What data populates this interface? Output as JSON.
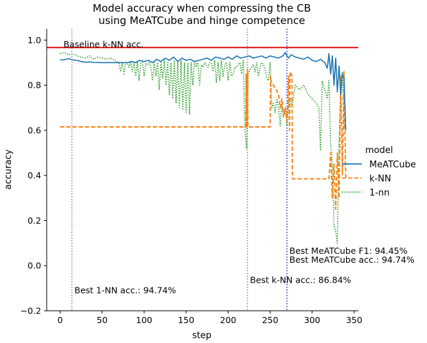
{
  "chart_data": {
    "type": "line",
    "title_lines": [
      "Model accuracy when compressing the CB",
      "using MeATCube and hinge competence"
    ],
    "xlabel": "step",
    "ylabel": "accuracy",
    "xlim": [
      -16,
      355
    ],
    "ylim": [
      -0.2,
      1.05
    ],
    "xticks": [
      0,
      50,
      100,
      150,
      200,
      250,
      300,
      350
    ],
    "yticks": [
      -0.2,
      0.0,
      0.2,
      0.4,
      0.6,
      0.8,
      1.0
    ],
    "grid": false,
    "legend": {
      "title": "model",
      "placement": "right",
      "entries": [
        "MeATCube",
        "k-NN",
        "1-nn"
      ]
    },
    "baseline": {
      "y": 0.967,
      "color": "#e00000",
      "label": "Baseline k-NN acc.",
      "label_at": [
        4,
        0.98
      ]
    },
    "vlines": [
      {
        "x": 14,
        "color": "#7b68d8",
        "label": "Best 1-NN acc.: 94.74%",
        "label_at": [
          17,
          -0.11
        ]
      },
      {
        "x": 223,
        "color": "#7b68d8",
        "label": "Best k-NN acc.: 86.84%",
        "label_at": [
          226,
          -0.065
        ]
      },
      {
        "x": 270,
        "color": "#3a3ad0",
        "label": "Best MeATCube acc.: 94.74%",
        "label_at": [
          273,
          0.025
        ]
      },
      {
        "x": 270,
        "color": "#3a3ad0",
        "label": "Best MeATCube F1: 94.45%",
        "label_at": [
          273,
          0.065
        ]
      }
    ],
    "series": [
      {
        "name": "MeATCube",
        "color": "#1f77b4",
        "dash": "solid",
        "x": [
          0,
          5,
          10,
          15,
          20,
          25,
          30,
          35,
          40,
          50,
          60,
          70,
          80,
          85,
          90,
          95,
          100,
          105,
          110,
          115,
          120,
          125,
          130,
          135,
          140,
          145,
          150,
          155,
          160,
          165,
          170,
          175,
          180,
          185,
          190,
          195,
          200,
          205,
          210,
          215,
          220,
          225,
          230,
          235,
          240,
          245,
          250,
          255,
          260,
          265,
          268,
          270,
          272,
          275,
          280,
          285,
          290,
          295,
          300,
          305,
          310,
          315,
          318,
          320,
          322,
          324,
          326,
          328,
          330,
          332,
          334,
          336,
          338,
          340
        ],
        "y": [
          0.912,
          0.913,
          0.918,
          0.912,
          0.91,
          0.905,
          0.902,
          0.903,
          0.901,
          0.9,
          0.9,
          0.9,
          0.9,
          0.905,
          0.9,
          0.91,
          0.905,
          0.91,
          0.9,
          0.915,
          0.905,
          0.92,
          0.91,
          0.925,
          0.905,
          0.92,
          0.91,
          0.915,
          0.905,
          0.91,
          0.915,
          0.92,
          0.91,
          0.925,
          0.92,
          0.915,
          0.925,
          0.915,
          0.93,
          0.92,
          0.925,
          0.93,
          0.92,
          0.925,
          0.93,
          0.92,
          0.93,
          0.925,
          0.92,
          0.93,
          0.945,
          0.93,
          0.92,
          0.935,
          0.925,
          0.92,
          0.915,
          0.925,
          0.91,
          0.905,
          0.915,
          0.9,
          0.875,
          0.94,
          0.85,
          0.93,
          0.8,
          0.92,
          0.77,
          0.885,
          0.76,
          0.85,
          0.83,
          0.6
        ]
      },
      {
        "name": "k-NN",
        "color": "#ff7f0e",
        "dash": "dashed",
        "x": [
          0,
          221,
          221.5,
          222,
          223,
          223.5,
          224,
          250,
          250.5,
          251,
          254,
          257,
          260,
          262,
          264,
          266,
          268,
          270,
          272,
          273,
          273.5,
          274,
          276,
          276.5,
          277,
          318,
          320,
          322,
          324,
          326,
          328,
          330,
          332,
          334,
          336,
          338,
          340
        ],
        "y": [
          0.615,
          0.615,
          0.85,
          0.615,
          0.87,
          0.615,
          0.615,
          0.615,
          0.84,
          0.82,
          0.8,
          0.78,
          0.76,
          0.7,
          0.74,
          0.66,
          0.7,
          0.64,
          0.84,
          0.6,
          0.84,
          0.86,
          0.84,
          0.4,
          0.385,
          0.385,
          0.385,
          0.5,
          0.3,
          0.45,
          0.25,
          0.5,
          0.3,
          0.84,
          0.4,
          0.86,
          0.385
        ]
      },
      {
        "name": "1-nn",
        "color": "#2ca02c",
        "dash": "dotted",
        "x": [
          0,
          5,
          10,
          15,
          20,
          25,
          30,
          35,
          40,
          45,
          50,
          55,
          60,
          65,
          70,
          72,
          74,
          76,
          78,
          80,
          82,
          84,
          86,
          88,
          90,
          92,
          94,
          96,
          98,
          100,
          102,
          104,
          106,
          108,
          110,
          112,
          114,
          116,
          118,
          120,
          122,
          124,
          126,
          128,
          130,
          132,
          134,
          136,
          138,
          140,
          142,
          144,
          146,
          148,
          150,
          152,
          154,
          156,
          158,
          160,
          162,
          164,
          166,
          168,
          170,
          172,
          174,
          176,
          178,
          180,
          182,
          184,
          186,
          188,
          190,
          192,
          194,
          196,
          198,
          200,
          202,
          204,
          206,
          208,
          210,
          212,
          214,
          216,
          218,
          220,
          222,
          224,
          226,
          228,
          230,
          232,
          234,
          236,
          238,
          240,
          242,
          244,
          246,
          248,
          250,
          252,
          254,
          256,
          258,
          260,
          262,
          264,
          266,
          268,
          270,
          272,
          274,
          276,
          278,
          280,
          285,
          290,
          295,
          300,
          305,
          308,
          310,
          312,
          315,
          318,
          320,
          322,
          324,
          326,
          328,
          330,
          332,
          334,
          336,
          338
        ],
        "y": [
          0.94,
          0.945,
          0.935,
          0.94,
          0.93,
          0.925,
          0.92,
          0.93,
          0.915,
          0.925,
          0.92,
          0.915,
          0.92,
          0.91,
          0.9,
          0.86,
          0.9,
          0.85,
          0.895,
          0.9,
          0.88,
          0.9,
          0.86,
          0.9,
          0.84,
          0.9,
          0.82,
          0.9,
          0.9,
          0.84,
          0.895,
          0.89,
          0.9,
          0.88,
          0.82,
          0.9,
          0.84,
          0.9,
          0.78,
          0.9,
          0.83,
          0.91,
          0.8,
          0.9,
          0.76,
          0.9,
          0.74,
          0.91,
          0.72,
          0.9,
          0.7,
          0.91,
          0.69,
          0.9,
          0.68,
          0.9,
          0.67,
          0.9,
          0.8,
          0.91,
          0.88,
          0.9,
          0.8,
          0.89,
          0.88,
          0.9,
          0.89,
          0.88,
          0.9,
          0.9,
          0.86,
          0.91,
          0.81,
          0.9,
          0.82,
          0.91,
          0.84,
          0.89,
          0.9,
          0.82,
          0.9,
          0.84,
          0.85,
          0.88,
          0.88,
          0.89,
          0.9,
          0.85,
          0.91,
          0.6,
          0.52,
          0.85,
          0.87,
          0.88,
          0.89,
          0.86,
          0.9,
          0.84,
          0.88,
          0.9,
          0.89,
          0.87,
          0.83,
          0.82,
          0.9,
          0.7,
          0.72,
          0.68,
          0.74,
          0.7,
          0.62,
          0.72,
          0.66,
          0.7,
          0.62,
          0.72,
          0.74,
          0.7,
          0.76,
          0.8,
          0.78,
          0.8,
          0.76,
          0.74,
          0.72,
          0.7,
          0.51,
          0.82,
          0.78,
          0.74,
          0.82,
          0.54,
          0.45,
          0.18,
          0.15,
          0.1,
          0.55,
          0.78,
          0.86,
          0.6
        ]
      }
    ]
  }
}
